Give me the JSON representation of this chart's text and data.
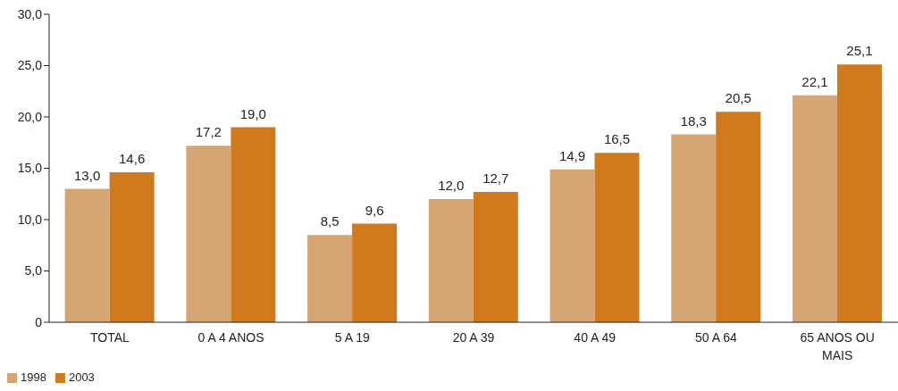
{
  "chart_data": {
    "type": "bar",
    "categories": [
      "TOTAL",
      "0 A 4 ANOS",
      "5 A 19",
      "20 A 39",
      "40 A 49",
      "50 A 64",
      "65 ANOS OU MAIS"
    ],
    "series": [
      {
        "name": "1998",
        "color": "#d6a574",
        "values": [
          13.0,
          17.2,
          8.5,
          12.0,
          14.9,
          18.3,
          22.1
        ],
        "value_labels": [
          "13,0",
          "17,2",
          "8,5",
          "12,0",
          "14,9",
          "18,3",
          "22,1"
        ]
      },
      {
        "name": "2003",
        "color": "#d0791d",
        "values": [
          14.6,
          19.0,
          9.6,
          12.7,
          16.5,
          20.5,
          25.1
        ],
        "value_labels": [
          "14,6",
          "19,0",
          "9,6",
          "12,7",
          "16,5",
          "20,5",
          "25,1"
        ]
      }
    ],
    "ylim": [
      0,
      30
    ],
    "yticks": [
      {
        "value": 0,
        "label": "0"
      },
      {
        "value": 5,
        "label": "5,0"
      },
      {
        "value": 10,
        "label": "10,0"
      },
      {
        "value": 15,
        "label": "15,0"
      },
      {
        "value": 20,
        "label": "20,0"
      },
      {
        "value": 25,
        "label": "25,0"
      },
      {
        "value": 30,
        "label": "30,0"
      }
    ],
    "grid": false,
    "legend": "bottom left"
  }
}
